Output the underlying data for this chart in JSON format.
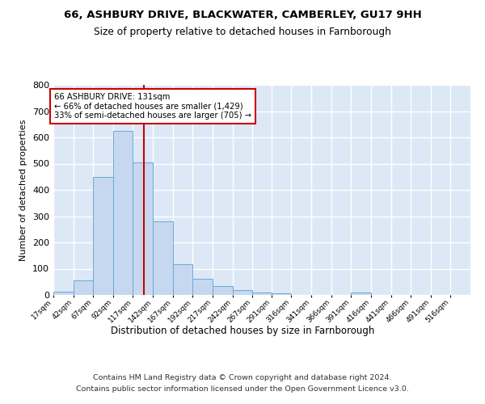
{
  "title1": "66, ASHBURY DRIVE, BLACKWATER, CAMBERLEY, GU17 9HH",
  "title2": "Size of property relative to detached houses in Farnborough",
  "xlabel": "Distribution of detached houses by size in Farnborough",
  "ylabel": "Number of detached properties",
  "footer1": "Contains HM Land Registry data © Crown copyright and database right 2024.",
  "footer2": "Contains public sector information licensed under the Open Government Licence v3.0.",
  "bin_labels": [
    "17sqm",
    "42sqm",
    "67sqm",
    "92sqm",
    "117sqm",
    "142sqm",
    "167sqm",
    "192sqm",
    "217sqm",
    "242sqm",
    "267sqm",
    "291sqm",
    "316sqm",
    "341sqm",
    "366sqm",
    "391sqm",
    "416sqm",
    "441sqm",
    "466sqm",
    "491sqm",
    "516sqm"
  ],
  "bar_values": [
    13,
    55,
    450,
    625,
    505,
    280,
    117,
    62,
    35,
    20,
    10,
    7,
    0,
    0,
    0,
    8,
    0,
    0,
    0,
    0,
    0
  ],
  "bar_color": "#c5d8f0",
  "bar_edgecolor": "#6aaad4",
  "bg_color": "#dce8f5",
  "grid_color": "#ffffff",
  "vline_x": 131,
  "vline_color": "#cc0000",
  "annotation_text": "66 ASHBURY DRIVE: 131sqm\n← 66% of detached houses are smaller (1,429)\n33% of semi-detached houses are larger (705) →",
  "annotation_box_edgecolor": "#cc0000",
  "annotation_box_facecolor": "#ffffff",
  "ylim": [
    0,
    800
  ],
  "bin_edges": [
    17,
    42,
    67,
    92,
    117,
    142,
    167,
    192,
    217,
    242,
    267,
    291,
    316,
    341,
    366,
    391,
    416,
    441,
    466,
    491,
    516,
    541
  ]
}
